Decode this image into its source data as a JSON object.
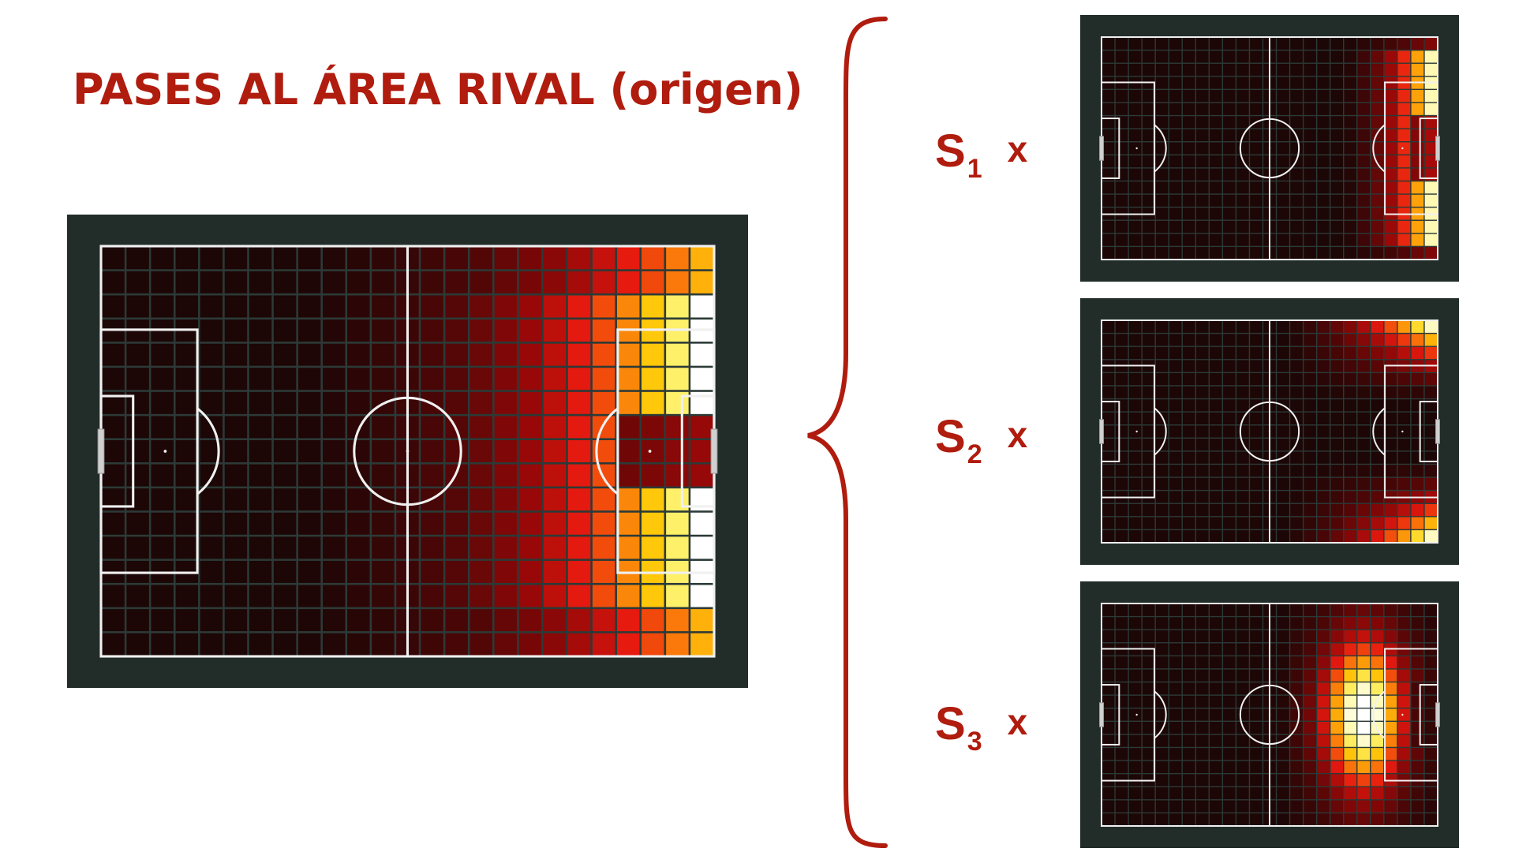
{
  "title": "PASES AL ÁREA RIVAL (origen)",
  "colors": {
    "accent": "#b01c0e",
    "frame": "#222d2a",
    "pitch_base": "#1a0606",
    "lines": "#f0f0f0",
    "grid": "#2c3a37"
  },
  "grid": {
    "cols": 25,
    "rows": 17
  },
  "heatmaps": [
    {
      "id": "main",
      "description_key": "total",
      "hot_zone": "right-third-full-width"
    },
    {
      "id": "s1",
      "hot_zone": "right-box-central"
    },
    {
      "id": "s2",
      "hot_zone": "right-wings"
    },
    {
      "id": "s3",
      "hot_zone": "right-third-central-wide"
    }
  ],
  "terms": [
    {
      "symbol": "S",
      "index": "1",
      "operator": "x"
    },
    {
      "symbol": "S",
      "index": "2",
      "operator": "x"
    },
    {
      "symbol": "S",
      "index": "3",
      "operator": "x"
    }
  ]
}
